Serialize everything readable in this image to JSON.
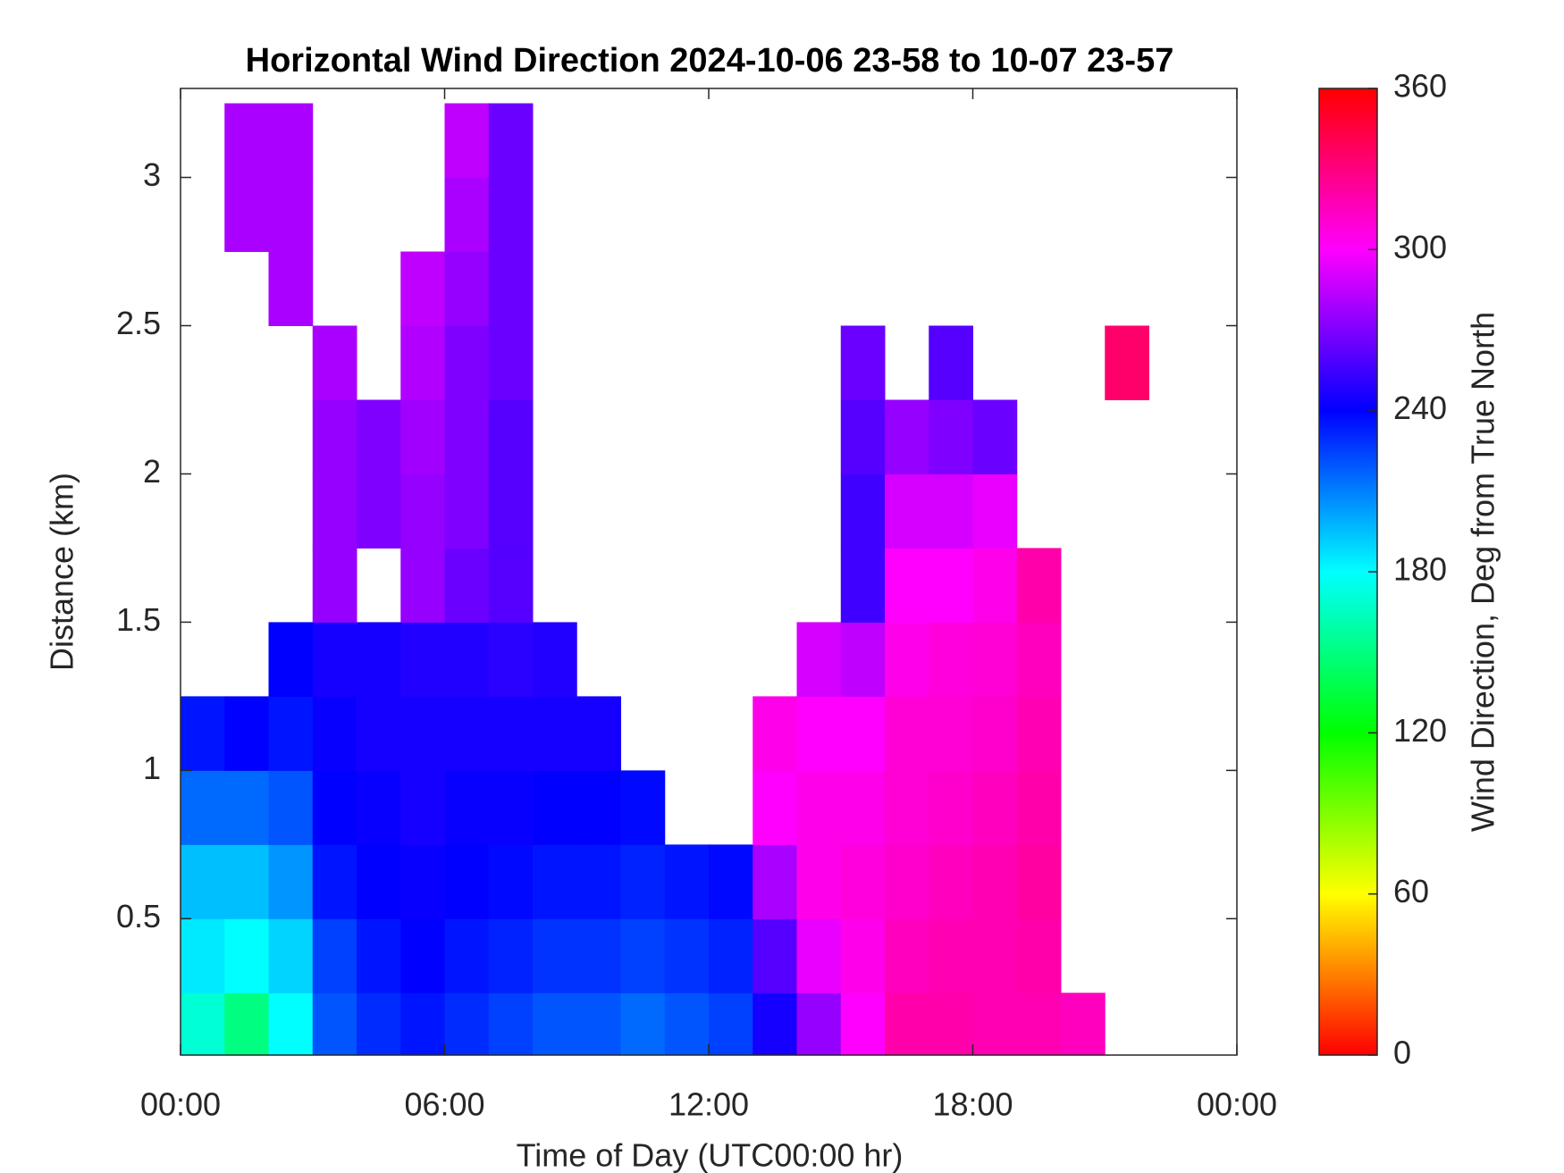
{
  "chart_data": {
    "type": "heatmap",
    "title": "Horizontal Wind Direction 2024-10-06 23-58 to 10-07 23-57",
    "x_label": "Time of Day (UTC00:00 hr)",
    "y_label": "Distance (km)",
    "colormap": "hsv",
    "xlim": [
      0,
      24
    ],
    "xticks": [
      {
        "value": 0,
        "label": "00:00"
      },
      {
        "value": 6,
        "label": "06:00"
      },
      {
        "value": 12,
        "label": "12:00"
      },
      {
        "value": 18,
        "label": "18:00"
      },
      {
        "value": 24,
        "label": "00:00"
      }
    ],
    "ylim": [
      0.04,
      3.3
    ],
    "yticks": [
      0.5,
      1,
      1.5,
      2,
      2.5,
      3
    ],
    "x": [
      0.5,
      1.5,
      2.5,
      3.5,
      4.5,
      5.5,
      6.5,
      7.5,
      8.5,
      9.5,
      10.5,
      11.5,
      12.5,
      13.5,
      14.5,
      15.5,
      16.5,
      17.5,
      18.5,
      19.5,
      20.5,
      21.5,
      22.5,
      23.5
    ],
    "y": [
      0.125,
      0.375,
      0.625,
      0.875,
      1.125,
      1.375,
      1.625,
      1.875,
      2.125,
      2.375,
      2.625,
      2.875,
      3.125
    ],
    "values": [
      [
        170,
        150,
        180,
        220,
        230,
        235,
        230,
        225,
        220,
        220,
        215,
        220,
        225,
        245,
        275,
        300,
        320,
        320,
        318,
        318,
        315,
        null,
        null,
        null
      ],
      [
        185,
        180,
        190,
        225,
        235,
        240,
        235,
        232,
        228,
        228,
        225,
        228,
        232,
        260,
        295,
        305,
        315,
        318,
        318,
        320,
        null,
        null,
        null,
        null
      ],
      [
        195,
        195,
        205,
        235,
        240,
        242,
        240,
        238,
        235,
        235,
        232,
        235,
        238,
        280,
        305,
        308,
        312,
        315,
        318,
        322,
        null,
        null,
        null,
        null
      ],
      [
        215,
        215,
        220,
        240,
        242,
        245,
        242,
        242,
        240,
        240,
        238,
        null,
        null,
        300,
        305,
        305,
        310,
        312,
        315,
        320,
        null,
        null,
        null,
        null
      ],
      [
        235,
        240,
        235,
        242,
        245,
        245,
        245,
        245,
        245,
        245,
        null,
        null,
        null,
        305,
        300,
        300,
        310,
        310,
        312,
        318,
        null,
        null,
        null,
        null
      ],
      [
        null,
        null,
        240,
        245,
        245,
        248,
        248,
        250,
        248,
        null,
        null,
        null,
        null,
        null,
        290,
        285,
        305,
        308,
        310,
        315,
        null,
        null,
        null,
        null
      ],
      [
        null,
        null,
        null,
        275,
        null,
        275,
        265,
        260,
        null,
        null,
        null,
        null,
        null,
        null,
        null,
        255,
        300,
        300,
        305,
        320,
        null,
        null,
        null,
        null
      ],
      [
        null,
        null,
        null,
        275,
        270,
        275,
        270,
        260,
        null,
        null,
        null,
        null,
        null,
        null,
        null,
        255,
        290,
        290,
        295,
        null,
        null,
        null,
        null,
        null
      ],
      [
        null,
        null,
        null,
        275,
        270,
        278,
        270,
        260,
        null,
        null,
        null,
        null,
        null,
        null,
        null,
        260,
        275,
        270,
        265,
        null,
        null,
        null,
        null,
        null
      ],
      [
        null,
        null,
        null,
        280,
        null,
        282,
        270,
        265,
        null,
        null,
        null,
        null,
        null,
        null,
        null,
        265,
        null,
        260,
        null,
        null,
        null,
        335,
        null,
        null
      ],
      [
        null,
        null,
        280,
        null,
        null,
        285,
        275,
        265,
        null,
        null,
        null,
        null,
        null,
        null,
        null,
        null,
        null,
        null,
        null,
        null,
        null,
        null,
        null,
        null
      ],
      [
        null,
        280,
        280,
        null,
        null,
        null,
        280,
        265,
        null,
        null,
        null,
        null,
        null,
        null,
        null,
        null,
        null,
        null,
        null,
        null,
        null,
        null,
        null,
        null
      ],
      [
        null,
        280,
        280,
        null,
        null,
        null,
        285,
        265,
        null,
        null,
        null,
        null,
        null,
        null,
        null,
        null,
        null,
        null,
        null,
        null,
        null,
        null,
        null,
        null
      ]
    ],
    "colorbar": {
      "label": "Wind Direction, Deg from True North",
      "lim": [
        0,
        360
      ],
      "ticks": [
        0,
        60,
        120,
        180,
        240,
        300,
        360
      ]
    }
  }
}
